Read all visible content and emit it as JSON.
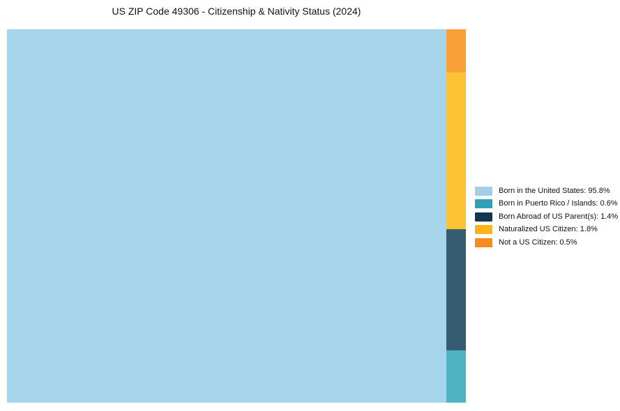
{
  "chart_data": {
    "type": "treemap",
    "title": "US ZIP Code 49306 - Citizenship & Nativity Status (2024)",
    "items": [
      {
        "label": "Born in the United States",
        "value_pct": 95.8,
        "color": "#A1CFE8",
        "tile_color": "#A6D4EB",
        "legend_text": "Born in the United States: 95.8%"
      },
      {
        "label": "Born in Puerto Rico / Islands",
        "value_pct": 0.6,
        "color": "#2FA0BA",
        "tile_color": "#4FB3C4",
        "legend_text": "Born in Puerto Rico / Islands: 0.6%"
      },
      {
        "label": "Born Abroad of US Parent(s)",
        "value_pct": 1.4,
        "color": "#12374F",
        "tile_color": "#365C72",
        "legend_text": "Born Abroad of US Parent(s): 1.4%"
      },
      {
        "label": "Naturalized US Citizen",
        "value_pct": 1.8,
        "color": "#FDB515",
        "tile_color": "#FDC336",
        "legend_text": "Naturalized US Citizen: 1.8%"
      },
      {
        "label": "Not a US Citizen",
        "value_pct": 0.5,
        "color": "#F78B1C",
        "tile_color": "#F9A138",
        "legend_text": "Not a US Citizen: 0.5%"
      }
    ],
    "layout": {
      "legend_position": "right-center",
      "background": "#FFFFFF",
      "main_tile": "Born in the United States",
      "column_top_to_bottom": [
        "Not a US Citizen",
        "Naturalized US Citizen",
        "Born Abroad of US Parent(s)",
        "Born in Puerto Rico / Islands"
      ]
    }
  }
}
